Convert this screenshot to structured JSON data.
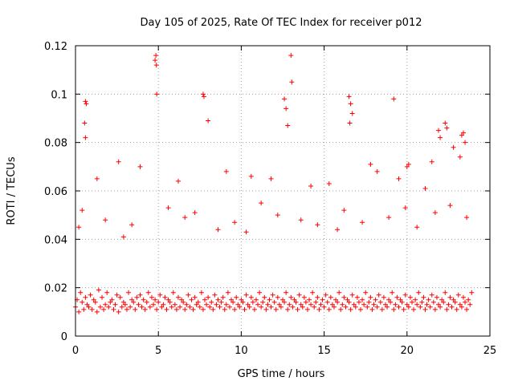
{
  "chart_data": {
    "type": "scatter",
    "title": "Day 105 of 2025, Rate Of TEC Index for receiver p012",
    "xlabel": "GPS time / hours",
    "ylabel": "ROTI / TECUs",
    "xlim": [
      0,
      25
    ],
    "ylim": [
      0,
      0.12
    ],
    "xticks": [
      0,
      5,
      10,
      15,
      20,
      25
    ],
    "xtick_labels": [
      "0",
      "5",
      "10",
      "15",
      "20",
      "25"
    ],
    "yticks": [
      0,
      0.02,
      0.04,
      0.06,
      0.08,
      0.1,
      0.12
    ],
    "ytick_labels": [
      "0",
      "0.02",
      "0.04",
      "0.06",
      "0.08",
      "0.1",
      "0.12"
    ],
    "grid": true,
    "marker": "plus",
    "color": "#ff0000",
    "series": [
      {
        "x": [
          0.0,
          0.1,
          0.2,
          0.3,
          0.4,
          0.5,
          0.6,
          0.7,
          0.8,
          0.9,
          1.0,
          1.1,
          1.2,
          1.3,
          1.4,
          1.5,
          1.6,
          1.7,
          1.8,
          1.9,
          2.0,
          2.1,
          2.2,
          2.3,
          2.4,
          2.5,
          2.6,
          2.7,
          2.8,
          2.9,
          3.0,
          3.1,
          3.2,
          3.3,
          3.4,
          3.5,
          3.6,
          3.7,
          3.8,
          3.9,
          4.0,
          4.1,
          4.2,
          4.3,
          4.4,
          4.5,
          4.6,
          4.7,
          4.8,
          4.9,
          5.0,
          5.1,
          5.2,
          5.3,
          5.4,
          5.5,
          5.6,
          5.7,
          5.8,
          5.9,
          6.0,
          6.1,
          6.2,
          6.3,
          6.4,
          6.5,
          6.6,
          6.7,
          6.8,
          6.9,
          7.0,
          7.1,
          7.2,
          7.3,
          7.4,
          7.5,
          7.6,
          7.7,
          7.8,
          7.9,
          8.0,
          8.1,
          8.2,
          8.3,
          8.4,
          8.5,
          8.6,
          8.7,
          8.8,
          8.9,
          9.0,
          9.1,
          9.2,
          9.3,
          9.4,
          9.5,
          9.6,
          9.7,
          9.8,
          9.9,
          10.0,
          10.1,
          10.2,
          10.3,
          10.4,
          10.5,
          10.6,
          10.7,
          10.8,
          10.9,
          11.0,
          11.1,
          11.2,
          11.3,
          11.4,
          11.5,
          11.6,
          11.7,
          11.8,
          11.9,
          12.0,
          12.1,
          12.2,
          12.3,
          12.4,
          12.5,
          12.6,
          12.7,
          12.8,
          12.9,
          13.0,
          13.1,
          13.2,
          13.3,
          13.4,
          13.5,
          13.6,
          13.7,
          13.8,
          13.9,
          14.0,
          14.1,
          14.2,
          14.3,
          14.4,
          14.5,
          14.6,
          14.7,
          14.8,
          14.9,
          15.0,
          15.1,
          15.2,
          15.3,
          15.4,
          15.5,
          15.6,
          15.7,
          15.8,
          15.9,
          16.0,
          16.1,
          16.2,
          16.3,
          16.4,
          16.5,
          16.6,
          16.7,
          16.8,
          16.9,
          17.0,
          17.1,
          17.2,
          17.3,
          17.4,
          17.5,
          17.6,
          17.7,
          17.8,
          17.9,
          18.0,
          18.1,
          18.2,
          18.3,
          18.4,
          18.5,
          18.6,
          18.7,
          18.8,
          18.9,
          19.0,
          19.1,
          19.2,
          19.3,
          19.4,
          19.5,
          19.6,
          19.7,
          19.8,
          19.9,
          20.0,
          20.1,
          20.2,
          20.3,
          20.4,
          20.5,
          20.6,
          20.7,
          20.8,
          20.9,
          21.0,
          21.1,
          21.2,
          21.3,
          21.4,
          21.5,
          21.6,
          21.7,
          21.8,
          21.9,
          22.0,
          22.1,
          22.2,
          22.3,
          22.4,
          22.5,
          22.6,
          22.7,
          22.8,
          22.9,
          23.0,
          23.1,
          23.2,
          23.3,
          23.4,
          23.5,
          23.6,
          23.7,
          23.8,
          23.9,
          0.6,
          0.65,
          0.55,
          0.6,
          4.8,
          4.85,
          4.9,
          4.88,
          7.7,
          7.75,
          8.0,
          12.6,
          13.0,
          13.05,
          12.8,
          12.7,
          16.5,
          16.6,
          16.7,
          16.55,
          19.2,
          21.9,
          22.3,
          22.4,
          23.3,
          23.4,
          23.5,
          1.3,
          2.6,
          3.9,
          6.2,
          9.1,
          10.6,
          11.8,
          14.2,
          15.3,
          17.8,
          18.2,
          19.5,
          20.0,
          20.1,
          21.1,
          21.5,
          22.0,
          22.8,
          23.2,
          0.2,
          0.4,
          1.8,
          2.9,
          3.4,
          5.6,
          6.6,
          7.2,
          8.6,
          9.6,
          10.3,
          11.2,
          12.2,
          13.6,
          14.6,
          15.8,
          16.2,
          17.3,
          18.9,
          19.9,
          20.6,
          21.7,
          22.6,
          23.6
        ],
        "y": [
          0.012,
          0.015,
          0.01,
          0.018,
          0.014,
          0.011,
          0.016,
          0.013,
          0.012,
          0.017,
          0.011,
          0.015,
          0.014,
          0.01,
          0.019,
          0.012,
          0.016,
          0.011,
          0.013,
          0.018,
          0.012,
          0.014,
          0.015,
          0.011,
          0.013,
          0.017,
          0.01,
          0.016,
          0.012,
          0.014,
          0.013,
          0.011,
          0.018,
          0.012,
          0.015,
          0.014,
          0.011,
          0.016,
          0.013,
          0.017,
          0.012,
          0.015,
          0.011,
          0.014,
          0.018,
          0.012,
          0.016,
          0.013,
          0.015,
          0.011,
          0.014,
          0.017,
          0.012,
          0.013,
          0.016,
          0.011,
          0.015,
          0.014,
          0.012,
          0.018,
          0.013,
          0.011,
          0.016,
          0.012,
          0.015,
          0.014,
          0.011,
          0.013,
          0.017,
          0.012,
          0.015,
          0.011,
          0.016,
          0.013,
          0.014,
          0.012,
          0.018,
          0.011,
          0.015,
          0.013,
          0.016,
          0.012,
          0.014,
          0.011,
          0.017,
          0.013,
          0.015,
          0.012,
          0.014,
          0.016,
          0.011,
          0.013,
          0.018,
          0.012,
          0.015,
          0.014,
          0.011,
          0.016,
          0.013,
          0.012,
          0.015,
          0.014,
          0.011,
          0.017,
          0.013,
          0.012,
          0.016,
          0.014,
          0.011,
          0.015,
          0.013,
          0.018,
          0.012,
          0.014,
          0.016,
          0.011,
          0.013,
          0.015,
          0.012,
          0.017,
          0.014,
          0.011,
          0.016,
          0.013,
          0.012,
          0.015,
          0.014,
          0.018,
          0.011,
          0.013,
          0.016,
          0.012,
          0.015,
          0.014,
          0.011,
          0.017,
          0.013,
          0.012,
          0.016,
          0.014,
          0.011,
          0.015,
          0.013,
          0.018,
          0.012,
          0.014,
          0.016,
          0.011,
          0.013,
          0.015,
          0.012,
          0.017,
          0.014,
          0.011,
          0.016,
          0.013,
          0.012,
          0.015,
          0.014,
          0.018,
          0.011,
          0.013,
          0.016,
          0.012,
          0.015,
          0.014,
          0.011,
          0.017,
          0.013,
          0.012,
          0.016,
          0.014,
          0.011,
          0.015,
          0.013,
          0.018,
          0.012,
          0.014,
          0.016,
          0.011,
          0.013,
          0.015,
          0.012,
          0.017,
          0.014,
          0.011,
          0.016,
          0.013,
          0.012,
          0.015,
          0.014,
          0.018,
          0.011,
          0.013,
          0.016,
          0.012,
          0.015,
          0.014,
          0.011,
          0.017,
          0.013,
          0.012,
          0.016,
          0.014,
          0.011,
          0.015,
          0.013,
          0.018,
          0.012,
          0.014,
          0.016,
          0.011,
          0.013,
          0.015,
          0.012,
          0.017,
          0.014,
          0.011,
          0.016,
          0.013,
          0.012,
          0.015,
          0.014,
          0.018,
          0.011,
          0.013,
          0.016,
          0.012,
          0.015,
          0.014,
          0.011,
          0.017,
          0.013,
          0.012,
          0.016,
          0.014,
          0.011,
          0.015,
          0.013,
          0.018,
          0.097,
          0.096,
          0.088,
          0.082,
          0.114,
          0.116,
          0.1,
          0.112,
          0.1,
          0.099,
          0.089,
          0.098,
          0.116,
          0.105,
          0.087,
          0.094,
          0.099,
          0.096,
          0.092,
          0.088,
          0.098,
          0.085,
          0.088,
          0.086,
          0.083,
          0.084,
          0.08,
          0.065,
          0.072,
          0.07,
          0.064,
          0.068,
          0.066,
          0.065,
          0.062,
          0.063,
          0.071,
          0.068,
          0.065,
          0.07,
          0.071,
          0.061,
          0.072,
          0.082,
          0.078,
          0.074,
          0.045,
          0.052,
          0.048,
          0.041,
          0.046,
          0.053,
          0.049,
          0.051,
          0.044,
          0.047,
          0.043,
          0.055,
          0.05,
          0.048,
          0.046,
          0.044,
          0.052,
          0.047,
          0.049,
          0.053,
          0.045,
          0.051,
          0.054,
          0.049
        ]
      }
    ]
  }
}
